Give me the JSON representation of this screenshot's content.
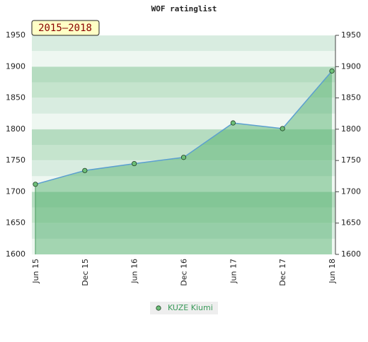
{
  "chart_data": {
    "type": "line",
    "title": "WOF ratinglist",
    "annotation": "2015–2018",
    "categories": [
      "Jun 15",
      "Dec 15",
      "Jun 16",
      "Dec 16",
      "Jun 17",
      "Dec 17",
      "Jun 18"
    ],
    "series": [
      {
        "name": "KUZE Kiumi",
        "color": "#5b9fd0",
        "marker_color": "#6dbf78",
        "values": [
          1712,
          1734,
          1745,
          1755,
          1810,
          1801,
          1893
        ]
      }
    ],
    "ylim": [
      1600,
      1950
    ],
    "yticks": [
      1600,
      1650,
      1700,
      1750,
      1800,
      1850,
      1900,
      1950
    ],
    "y2lim": [
      1600,
      1950
    ],
    "y2ticks": [
      1600,
      1650,
      1700,
      1750,
      1800,
      1850,
      1900,
      1950
    ],
    "area": true,
    "legend": "bottom"
  }
}
